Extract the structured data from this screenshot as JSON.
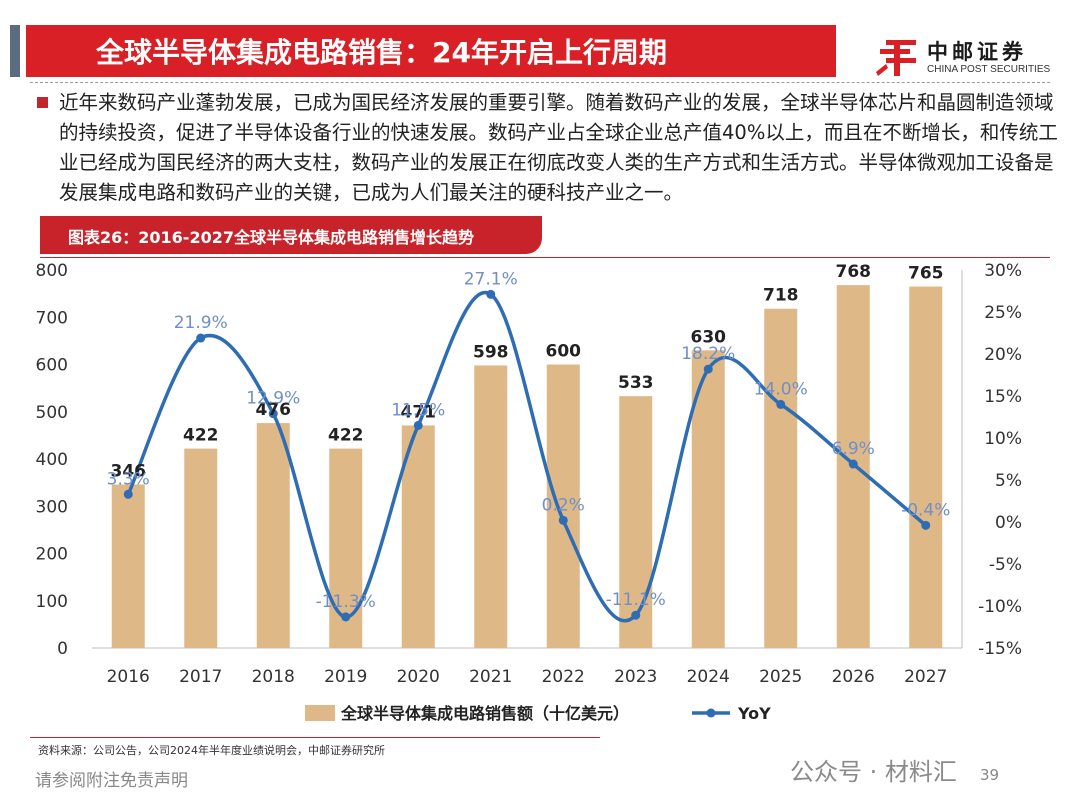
{
  "header": {
    "title": "全球半导体集成电路销售：24年开启上行周期",
    "logo_cn": "中邮证券",
    "logo_en": "CHINA POST SECURITIES"
  },
  "body": {
    "paragraph": "近年来数码产业蓬勃发展，已成为国民经济发展的重要引擎。随着数码产业的发展，全球半导体芯片和晶圆制造领域的持续投资，促进了半导体设备行业的快速发展。数码产业占全球企业总产值40%以上，而且在不断增长，和传统工业已经成为国民经济的两大支柱，数码产业的发展正在彻底改变人类的生产方式和生活方式。半导体微观加工设备是发展集成电路和数码产业的关键，已成为人们最关注的硬科技产业之一。"
  },
  "figure": {
    "label": "图表26：2016-2027全球半导体集成电路销售增长趋势"
  },
  "chart_data": {
    "type": "bar",
    "categories": [
      "2016",
      "2017",
      "2018",
      "2019",
      "2020",
      "2021",
      "2022",
      "2023",
      "2024",
      "2025",
      "2026",
      "2027"
    ],
    "series": [
      {
        "name": "全球半导体集成电路销售额（十亿美元）",
        "type": "bar",
        "axis": "left",
        "values": [
          346,
          422,
          476,
          422,
          471,
          598,
          600,
          533,
          630,
          718,
          768,
          765
        ],
        "labels": [
          "346",
          "422",
          "476",
          "422",
          "471",
          "598",
          "600",
          "533",
          "630",
          "718",
          "768",
          "765"
        ]
      },
      {
        "name": "YoY",
        "type": "line",
        "axis": "right",
        "values": [
          3.3,
          21.9,
          12.9,
          -11.3,
          11.5,
          27.1,
          0.2,
          -11.1,
          18.2,
          14.0,
          6.9,
          -0.4
        ],
        "labels": [
          "3.3%",
          "21.9%",
          "12.9%",
          "-11.3%",
          "11.5%",
          "27.1%",
          "0.2%",
          "-11.1%",
          "18.2%",
          "14.0%",
          "6.9%",
          "-0.4%"
        ]
      }
    ],
    "y_left": {
      "min": 0,
      "max": 800,
      "ticks": [
        "0",
        "100",
        "200",
        "300",
        "400",
        "500",
        "600",
        "700",
        "800"
      ]
    },
    "y_right": {
      "min": -15,
      "max": 30,
      "ticks": [
        "-15%",
        "-10%",
        "-5%",
        "0%",
        "5%",
        "10%",
        "15%",
        "20%",
        "25%",
        "30%"
      ]
    },
    "legend_position": "bottom",
    "grid": false,
    "colors": {
      "bar": "#deb887",
      "line": "#2e6db4",
      "line_label": "#6f8fc9",
      "bar_label": "#222222"
    }
  },
  "footer": {
    "source": "资料来源：公司公告，公司2024年半年度业绩说明会，中邮证券研究所",
    "disclaimer": "请参阅附注免责声明",
    "watermark": "公众号 · 材料汇",
    "page": "39"
  }
}
